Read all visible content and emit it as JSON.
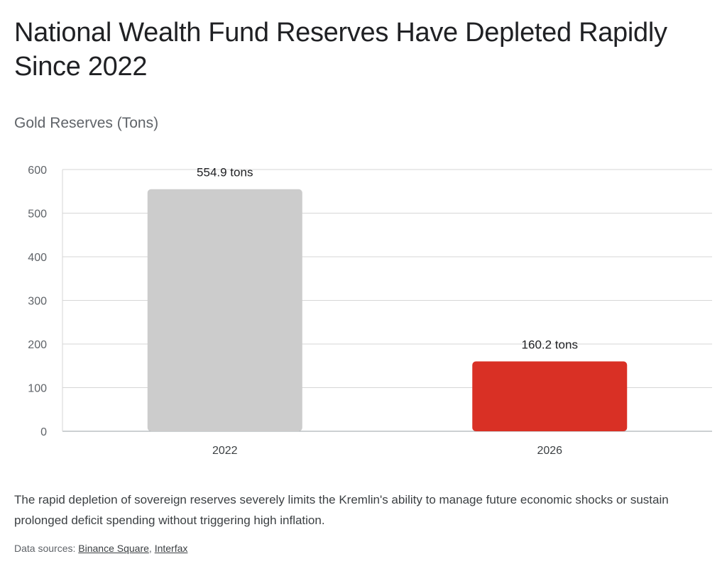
{
  "title": "National Wealth Fund Reserves Have Depleted Rapidly Since 2022",
  "subtitle": "Gold Reserves (Tons)",
  "caption": "The rapid depletion of sovereign reserves severely limits the Kremlin's ability to manage future economic shocks or sustain prolonged deficit spending without triggering high inflation.",
  "sources": {
    "label": "Data sources:",
    "separator": ",",
    "links": [
      "Binance Square",
      "Interfax"
    ]
  },
  "chart_data": {
    "type": "bar",
    "categories": [
      "2022",
      "2026"
    ],
    "values": [
      554.9,
      160.2
    ],
    "data_labels": [
      "554.9 tons",
      "160.2 tons"
    ],
    "colors": [
      "#cccccc",
      "#d93025"
    ],
    "ylim": [
      0,
      600
    ],
    "yticks": [
      0,
      100,
      200,
      300,
      400,
      500,
      600
    ],
    "grid": true,
    "legend": "none"
  }
}
